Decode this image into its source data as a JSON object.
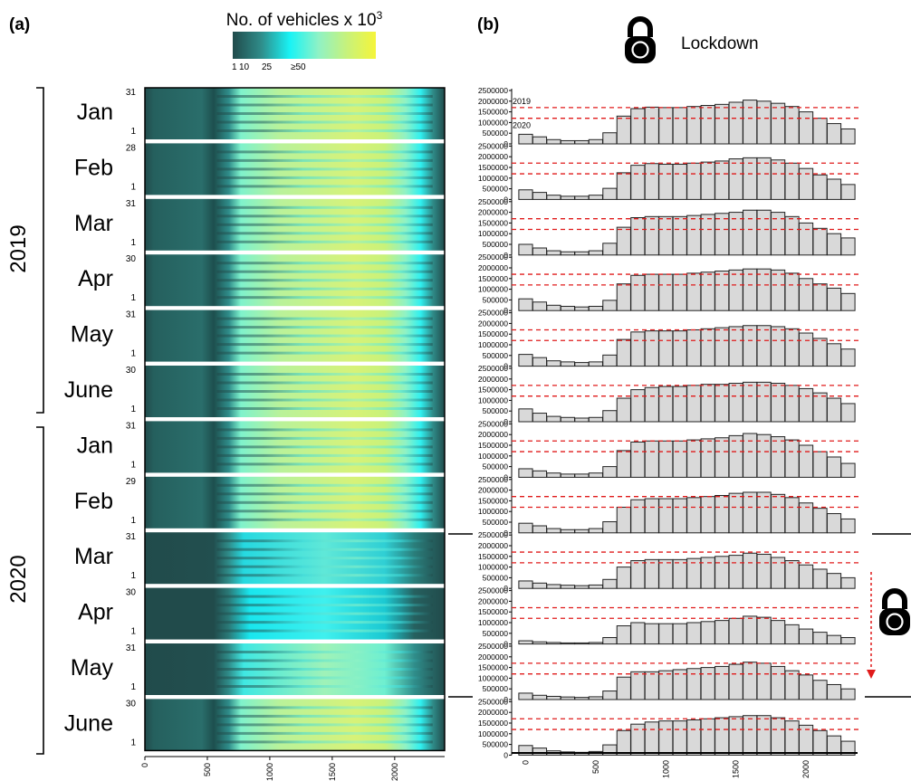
{
  "panel_labels": [
    "(a)",
    "(b)"
  ],
  "legend": {
    "title": "No. of vehicles x 10",
    "title_sup": "3",
    "ticks": [
      "1",
      "10",
      "25",
      "≥50"
    ],
    "colors": [
      "#214b4b",
      "#2f8d8a",
      "#19f3f5",
      "#8ff2c5",
      "#c8f27a",
      "#f5f53a"
    ]
  },
  "lockdown_label": "Lockdown",
  "years": [
    "2019",
    "2020"
  ],
  "heatmap_x_ticks": [
    "0",
    "500",
    "1000",
    "1500",
    "2000"
  ],
  "hist_x_ticks": [
    "0",
    "500",
    "1000",
    "1500",
    "2000"
  ],
  "hist_y_ticks": [
    "0",
    "500000",
    "1000000",
    "1500000",
    "2000000",
    "2500000"
  ],
  "ref_line_labels": [
    "2019",
    "2020"
  ],
  "colors": {
    "heat_dark": "#214b4b",
    "bar_fill": "#d9d9d9",
    "ref_line": "#e01b1b",
    "lockdown_arrow": "#e01b1b"
  },
  "months": [
    {
      "label": "Jan",
      "year": "2019",
      "top_day": "31",
      "bottom_day": "1"
    },
    {
      "label": "Feb",
      "year": "2019",
      "top_day": "28",
      "bottom_day": "1"
    },
    {
      "label": "Mar",
      "year": "2019",
      "top_day": "31",
      "bottom_day": "1"
    },
    {
      "label": "Apr",
      "year": "2019",
      "top_day": "30",
      "bottom_day": "1"
    },
    {
      "label": "May",
      "year": "2019",
      "top_day": "31",
      "bottom_day": "1"
    },
    {
      "label": "June",
      "year": "2019",
      "top_day": "30",
      "bottom_day": "1"
    },
    {
      "label": "Jan",
      "year": "2020",
      "top_day": "31",
      "bottom_day": "1"
    },
    {
      "label": "Feb",
      "year": "2020",
      "top_day": "29",
      "bottom_day": "1"
    },
    {
      "label": "Mar",
      "year": "2020",
      "top_day": "31",
      "bottom_day": "1"
    },
    {
      "label": "Apr",
      "year": "2020",
      "top_day": "30",
      "bottom_day": "1"
    },
    {
      "label": "May",
      "year": "2020",
      "top_day": "31",
      "bottom_day": "1"
    },
    {
      "label": "June",
      "year": "2020",
      "top_day": "30",
      "bottom_day": "1"
    }
  ],
  "chart_data": [
    {
      "type": "heatmap",
      "xlim": [
        0,
        2400
      ],
      "x_ticks": [
        0,
        500,
        1000,
        1500,
        2000
      ],
      "rows": "days of each month (Jan–June 2019, Jan–June 2020)",
      "color_levels_thousands": [
        1,
        10,
        25,
        50
      ]
    },
    {
      "type": "bar",
      "x": [
        0,
        100,
        200,
        300,
        400,
        500,
        600,
        700,
        800,
        900,
        1000,
        1100,
        1200,
        1300,
        1400,
        1500,
        1600,
        1700,
        1800,
        1900,
        2000,
        2100,
        2200,
        2300
      ],
      "xlim": [
        -100,
        2400
      ],
      "ylim": [
        0,
        2500000
      ],
      "reference_lines": [
        {
          "label": "2019",
          "value": 1700000
        },
        {
          "label": "2020",
          "value": 1200000
        }
      ],
      "panels": [
        {
          "month": "Jan",
          "year": "2019",
          "values": [
            450000,
            330000,
            200000,
            150000,
            150000,
            200000,
            520000,
            1300000,
            1650000,
            1720000,
            1700000,
            1700000,
            1750000,
            1800000,
            1850000,
            1950000,
            2050000,
            2000000,
            1900000,
            1750000,
            1500000,
            1200000,
            950000,
            700000
          ]
        },
        {
          "month": "Feb",
          "year": "2019",
          "values": [
            450000,
            330000,
            200000,
            150000,
            150000,
            200000,
            520000,
            1250000,
            1600000,
            1680000,
            1650000,
            1650000,
            1700000,
            1750000,
            1800000,
            1900000,
            1950000,
            1950000,
            1850000,
            1700000,
            1450000,
            1150000,
            950000,
            700000
          ]
        },
        {
          "month": "Mar",
          "year": "2019",
          "values": [
            500000,
            330000,
            200000,
            150000,
            150000,
            200000,
            550000,
            1300000,
            1750000,
            1800000,
            1800000,
            1800000,
            1850000,
            1900000,
            1950000,
            2000000,
            2100000,
            2100000,
            2000000,
            1800000,
            1500000,
            1250000,
            1000000,
            800000
          ]
        },
        {
          "month": "Apr",
          "year": "2019",
          "values": [
            550000,
            400000,
            250000,
            200000,
            170000,
            200000,
            480000,
            1250000,
            1650000,
            1700000,
            1700000,
            1700000,
            1750000,
            1800000,
            1850000,
            1900000,
            1950000,
            1950000,
            1900000,
            1750000,
            1500000,
            1250000,
            1050000,
            800000
          ]
        },
        {
          "month": "May",
          "year": "2019",
          "values": [
            550000,
            400000,
            250000,
            200000,
            170000,
            200000,
            520000,
            1250000,
            1600000,
            1650000,
            1650000,
            1650000,
            1700000,
            1750000,
            1800000,
            1850000,
            1900000,
            1900000,
            1850000,
            1750000,
            1550000,
            1300000,
            1050000,
            800000
          ]
        },
        {
          "month": "June",
          "year": "2019",
          "values": [
            600000,
            400000,
            250000,
            200000,
            170000,
            200000,
            520000,
            1100000,
            1500000,
            1600000,
            1650000,
            1650000,
            1700000,
            1750000,
            1750000,
            1800000,
            1850000,
            1850000,
            1800000,
            1700000,
            1550000,
            1350000,
            1100000,
            850000
          ]
        },
        {
          "month": "Jan",
          "year": "2020",
          "values": [
            400000,
            300000,
            200000,
            150000,
            150000,
            200000,
            500000,
            1250000,
            1650000,
            1700000,
            1700000,
            1700000,
            1750000,
            1800000,
            1850000,
            1950000,
            2050000,
            2000000,
            1900000,
            1750000,
            1500000,
            1200000,
            950000,
            650000
          ]
        },
        {
          "month": "Feb",
          "year": "2020",
          "values": [
            450000,
            330000,
            200000,
            150000,
            150000,
            200000,
            520000,
            1200000,
            1550000,
            1600000,
            1600000,
            1600000,
            1650000,
            1700000,
            1750000,
            1850000,
            1900000,
            1900000,
            1800000,
            1650000,
            1400000,
            1150000,
            900000,
            650000
          ]
        },
        {
          "month": "Mar",
          "year": "2020",
          "values": [
            350000,
            250000,
            180000,
            150000,
            130000,
            160000,
            420000,
            1000000,
            1300000,
            1350000,
            1350000,
            1350000,
            1400000,
            1450000,
            1500000,
            1550000,
            1650000,
            1600000,
            1450000,
            1300000,
            1100000,
            900000,
            700000,
            500000
          ]
        },
        {
          "month": "Apr",
          "year": "2020",
          "values": [
            150000,
            100000,
            70000,
            50000,
            50000,
            70000,
            300000,
            850000,
            1000000,
            950000,
            950000,
            950000,
            1000000,
            1050000,
            1100000,
            1200000,
            1300000,
            1250000,
            1100000,
            900000,
            700000,
            550000,
            400000,
            300000
          ]
        },
        {
          "month": "May",
          "year": "2020",
          "values": [
            300000,
            200000,
            150000,
            120000,
            100000,
            130000,
            400000,
            1050000,
            1300000,
            1300000,
            1350000,
            1400000,
            1450000,
            1500000,
            1550000,
            1650000,
            1750000,
            1700000,
            1550000,
            1350000,
            1150000,
            900000,
            700000,
            500000
          ]
        },
        {
          "month": "June",
          "year": "2020",
          "values": [
            450000,
            330000,
            200000,
            150000,
            130000,
            170000,
            480000,
            1150000,
            1450000,
            1550000,
            1600000,
            1600000,
            1650000,
            1700000,
            1750000,
            1800000,
            1850000,
            1850000,
            1750000,
            1600000,
            1400000,
            1150000,
            900000,
            650000
          ]
        }
      ]
    }
  ]
}
